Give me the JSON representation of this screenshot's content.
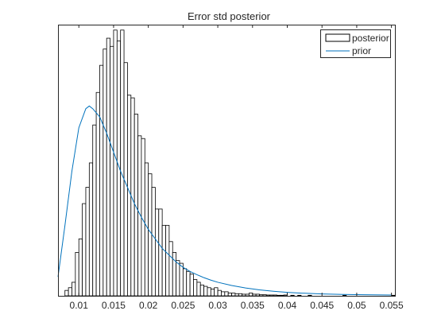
{
  "chart_data": {
    "type": "histogram",
    "title": "Error std posterior",
    "xlabel": "",
    "ylabel": "",
    "xlim": [
      0.007,
      0.0555
    ],
    "ylim": [
      0,
      1
    ],
    "x_ticks": [
      0.01,
      0.015,
      0.02,
      0.025,
      0.03,
      0.035,
      0.04,
      0.045,
      0.05,
      0.055
    ],
    "x_tick_labels": [
      "0.01",
      "0.015",
      "0.02",
      "0.025",
      "0.03",
      "0.035",
      "0.04",
      "0.045",
      "0.05",
      "0.055"
    ],
    "y_ticks_visible": false,
    "grid": false,
    "legend": {
      "position": "top-right",
      "entries": [
        {
          "label": "posterior",
          "kind": "bar",
          "color": "#000000"
        },
        {
          "label": "prior",
          "kind": "line",
          "color": "#0072BD"
        }
      ]
    },
    "histogram": {
      "name": "posterior",
      "bin_start": 0.0075,
      "bin_width": 0.0005,
      "counts": [
        0.0,
        0.02,
        0.03,
        0.05,
        0.16,
        0.21,
        0.34,
        0.4,
        0.49,
        0.63,
        0.75,
        0.85,
        0.91,
        0.95,
        0.92,
        0.98,
        0.94,
        0.98,
        0.86,
        0.74,
        0.73,
        0.67,
        0.59,
        0.58,
        0.49,
        0.45,
        0.4,
        0.32,
        0.32,
        0.26,
        0.26,
        0.2,
        0.16,
        0.13,
        0.12,
        0.1,
        0.09,
        0.08,
        0.06,
        0.05,
        0.04,
        0.035,
        0.03,
        0.025,
        0.03,
        0.02,
        0.015,
        0.015,
        0.01,
        0.01,
        0.008,
        0.008,
        0.006,
        0.006,
        0.01,
        0.006,
        0.006,
        0.004,
        0.004,
        0.003,
        0.003,
        0.003,
        0.002,
        0.002,
        0.003,
        0.0,
        0.002,
        0.0,
        0.002,
        0.0,
        0.0,
        0.002,
        0.0,
        0.0,
        0.0,
        0.0,
        0.0,
        0.0,
        0.0,
        0.0,
        0.0,
        0.002,
        0.0,
        0.0,
        0.0,
        0.0,
        0.0,
        0.0,
        0.0,
        0.0,
        0.0,
        0.0,
        0.0,
        0.0,
        0.0,
        0.002
      ]
    },
    "prior": {
      "name": "prior",
      "x": [
        0.007,
        0.008,
        0.009,
        0.01,
        0.011,
        0.0115,
        0.012,
        0.013,
        0.014,
        0.015,
        0.016,
        0.017,
        0.018,
        0.019,
        0.02,
        0.021,
        0.022,
        0.023,
        0.024,
        0.025,
        0.026,
        0.027,
        0.028,
        0.029,
        0.03,
        0.032,
        0.034,
        0.036,
        0.038,
        0.04,
        0.042,
        0.045,
        0.048,
        0.051,
        0.055
      ],
      "y": [
        0.07,
        0.26,
        0.46,
        0.62,
        0.69,
        0.7,
        0.69,
        0.66,
        0.6,
        0.53,
        0.46,
        0.4,
        0.34,
        0.29,
        0.245,
        0.21,
        0.175,
        0.15,
        0.125,
        0.105,
        0.09,
        0.078,
        0.067,
        0.058,
        0.05,
        0.038,
        0.029,
        0.022,
        0.017,
        0.013,
        0.01,
        0.007,
        0.005,
        0.004,
        0.003
      ]
    }
  }
}
